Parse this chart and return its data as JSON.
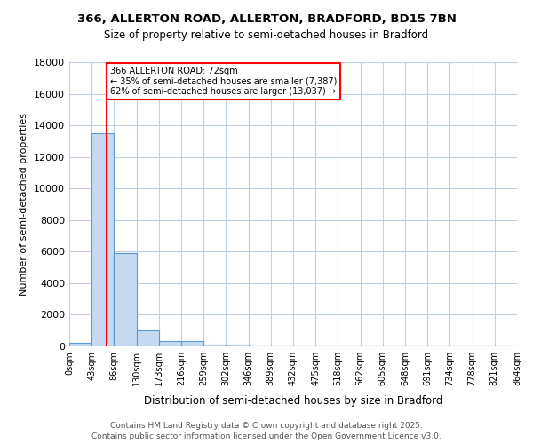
{
  "title_line1": "366, ALLERTON ROAD, ALLERTON, BRADFORD, BD15 7BN",
  "title_line2": "Size of property relative to semi-detached houses in Bradford",
  "xlabel": "Distribution of semi-detached houses by size in Bradford",
  "ylabel": "Number of semi-detached properties",
  "property_size": 72,
  "property_label": "366 ALLERTON ROAD: 72sqm",
  "pct_smaller": 35,
  "pct_larger": 62,
  "n_smaller": 7387,
  "n_larger": 13037,
  "bin_labels": [
    "0sqm",
    "43sqm",
    "86sqm",
    "130sqm",
    "173sqm",
    "216sqm",
    "259sqm",
    "302sqm",
    "346sqm",
    "389sqm",
    "432sqm",
    "475sqm",
    "518sqm",
    "562sqm",
    "605sqm",
    "648sqm",
    "691sqm",
    "734sqm",
    "778sqm",
    "821sqm",
    "864sqm"
  ],
  "counts": [
    200,
    13500,
    5900,
    1000,
    350,
    350,
    130,
    130,
    0,
    0,
    0,
    0,
    0,
    0,
    0,
    0,
    0,
    0,
    0,
    0
  ],
  "bar_color": "#c6d9f0",
  "bar_edge_color": "#5b9bd5",
  "vline_color": "#ff0000",
  "annotation_box_color": "#ff0000",
  "ylim": [
    0,
    18000
  ],
  "yticks": [
    0,
    2000,
    4000,
    6000,
    8000,
    10000,
    12000,
    14000,
    16000,
    18000
  ],
  "background_color": "#ffffff",
  "grid_color": "#c0d0e0",
  "footer_line1": "Contains HM Land Registry data © Crown copyright and database right 2025.",
  "footer_line2": "Contains public sector information licensed under the Open Government Licence v3.0."
}
